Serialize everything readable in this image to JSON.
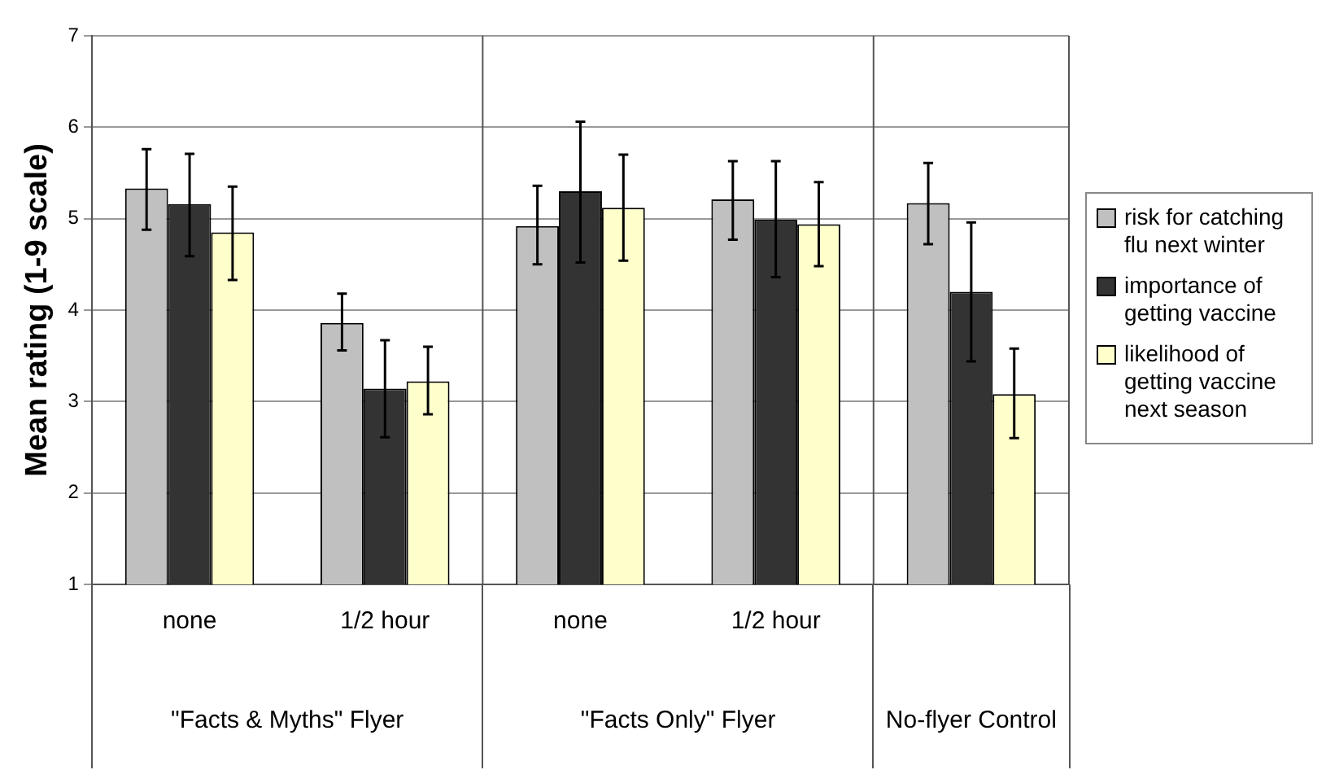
{
  "chart_data": {
    "type": "bar",
    "categories": [
      "none",
      "1/2 hour",
      "none",
      "1/2 hour",
      null
    ],
    "series": [
      {
        "name": "risk for catching flu next winter",
        "color": "#c0c0c0",
        "values": [
          5.33,
          3.86,
          4.92,
          5.21,
          5.17
        ],
        "errors": [
          [
            4.88,
            5.76
          ],
          [
            3.56,
            4.18
          ],
          [
            4.5,
            5.36
          ],
          [
            4.77,
            5.63
          ],
          [
            4.72,
            5.61
          ]
        ]
      },
      {
        "name": "importance of getting vaccine",
        "color": "#333333",
        "values": [
          5.16,
          3.14,
          5.3,
          4.99,
          4.2
        ],
        "errors": [
          [
            4.59,
            5.71
          ],
          [
            2.61,
            3.67
          ],
          [
            4.52,
            6.06
          ],
          [
            4.36,
            5.63
          ],
          [
            3.44,
            4.96
          ]
        ]
      },
      {
        "name": "likelihood of getting vaccine next season",
        "color": "#ffffcc",
        "values": [
          4.85,
          3.22,
          5.12,
          4.94,
          3.08
        ],
        "errors": [
          [
            4.33,
            5.35
          ],
          [
            2.86,
            3.6
          ],
          [
            4.54,
            5.7
          ],
          [
            4.48,
            5.4
          ],
          [
            2.6,
            3.58
          ]
        ]
      }
    ],
    "ylabel": "Mean rating (1-9 scale)",
    "ylim": [
      1,
      7
    ],
    "yticks": [
      1,
      2,
      3,
      4,
      5,
      6,
      7
    ],
    "grid": "y",
    "legend": "right",
    "annotations": [
      "\"Facts & Myths\" Flyer",
      "\"Facts Only\" Flyer",
      "No-flyer Control"
    ]
  }
}
